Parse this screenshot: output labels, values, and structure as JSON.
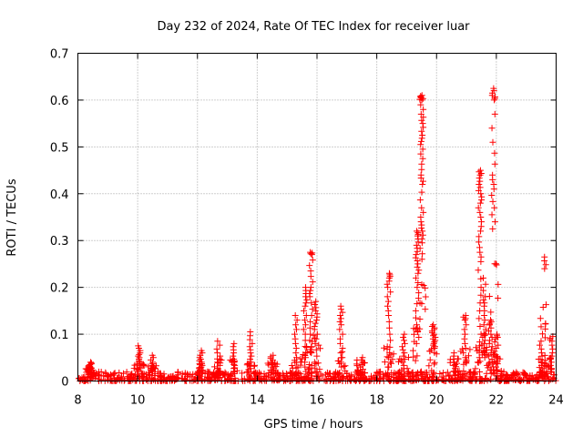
{
  "chart_data": {
    "type": "scatter",
    "title": "Day 232 of 2024, Rate Of TEC Index for receiver luar",
    "xlabel": "GPS time / hours",
    "ylabel": "ROTI / TECUs",
    "xlim": [
      8,
      24
    ],
    "ylim": [
      0,
      0.7
    ],
    "x_ticks": [
      8,
      10,
      12,
      14,
      16,
      18,
      20,
      22,
      24
    ],
    "x_tick_labels": [
      "8",
      "10",
      "12",
      "14",
      "16",
      "18",
      "20",
      "22",
      "24"
    ],
    "y_ticks": [
      0,
      0.1,
      0.2,
      0.3,
      0.4,
      0.5,
      0.6,
      0.7
    ],
    "y_tick_labels": [
      "0",
      "0.1",
      "0.2",
      "0.3",
      "0.4",
      "0.5",
      "0.6",
      "0.7"
    ],
    "grid": true,
    "marker": "+",
    "color": "#ff0000",
    "background_level": {
      "x_range": [
        8,
        24
      ],
      "y_min": 0.0,
      "y_max": 0.02
    },
    "clusters": [
      {
        "x": 8.4,
        "y": [
          0.01,
          0.02,
          0.025,
          0.03,
          0.035,
          0.04
        ]
      },
      {
        "x": 10.05,
        "y": [
          0.02,
          0.03,
          0.04,
          0.05,
          0.06,
          0.075
        ]
      },
      {
        "x": 10.5,
        "y": [
          0.02,
          0.03,
          0.04,
          0.055
        ]
      },
      {
        "x": 12.1,
        "y": [
          0.02,
          0.03,
          0.04,
          0.05,
          0.065
        ]
      },
      {
        "x": 12.7,
        "y": [
          0.02,
          0.04,
          0.06,
          0.085
        ]
      },
      {
        "x": 13.2,
        "y": [
          0.02,
          0.04,
          0.06,
          0.08
        ]
      },
      {
        "x": 13.8,
        "y": [
          0.02,
          0.04,
          0.06,
          0.08,
          0.105
        ]
      },
      {
        "x": 14.5,
        "y": [
          0.02,
          0.03,
          0.045,
          0.055
        ]
      },
      {
        "x": 15.3,
        "y": [
          0.02,
          0.05,
          0.08,
          0.11,
          0.14
        ]
      },
      {
        "x": 15.6,
        "y": [
          0.03,
          0.06,
          0.1,
          0.13,
          0.16,
          0.18,
          0.2
        ]
      },
      {
        "x": 15.8,
        "y": [
          0.06,
          0.1,
          0.14,
          0.18,
          0.2,
          0.235,
          0.27,
          0.275
        ]
      },
      {
        "x": 15.95,
        "y": [
          0.04,
          0.08,
          0.11,
          0.13,
          0.15,
          0.17
        ]
      },
      {
        "x": 16.8,
        "y": [
          0.03,
          0.06,
          0.09,
          0.12,
          0.14,
          0.16
        ]
      },
      {
        "x": 17.5,
        "y": [
          0.02,
          0.035,
          0.05
        ]
      },
      {
        "x": 18.4,
        "y": [
          0.03,
          0.06,
          0.1,
          0.14,
          0.17,
          0.2,
          0.22,
          0.23
        ]
      },
      {
        "x": 18.9,
        "y": [
          0.02,
          0.04,
          0.06,
          0.08,
          0.1
        ]
      },
      {
        "x": 19.35,
        "y": [
          0.08,
          0.12,
          0.165,
          0.2,
          0.23,
          0.25,
          0.27,
          0.29,
          0.31,
          0.32
        ]
      },
      {
        "x": 19.5,
        "y": [
          0.26,
          0.295,
          0.32,
          0.34,
          0.37,
          0.42,
          0.44,
          0.475,
          0.505,
          0.525,
          0.55,
          0.57,
          0.6,
          0.605,
          0.61
        ]
      },
      {
        "x": 19.9,
        "y": [
          0.07,
          0.08,
          0.09,
          0.1,
          0.11,
          0.12
        ]
      },
      {
        "x": 20.6,
        "y": [
          0.02,
          0.04,
          0.06
        ]
      },
      {
        "x": 20.95,
        "y": [
          0.04,
          0.07,
          0.1,
          0.13,
          0.14
        ]
      },
      {
        "x": 21.45,
        "y": [
          0.05,
          0.1,
          0.15,
          0.2,
          0.255,
          0.285,
          0.32,
          0.35,
          0.38,
          0.4,
          0.42,
          0.44,
          0.45
        ]
      },
      {
        "x": 21.6,
        "y": [
          0.05,
          0.08,
          0.1,
          0.13,
          0.16,
          0.18,
          0.22
        ]
      },
      {
        "x": 21.8,
        "y": [
          0.04,
          0.06,
          0.08,
          0.1,
          0.12,
          0.13
        ]
      },
      {
        "x": 21.9,
        "y": [
          0.325,
          0.37,
          0.41,
          0.44,
          0.51,
          0.6,
          0.61,
          0.625
        ]
      },
      {
        "x": 22.0,
        "y": [
          0.03,
          0.05,
          0.07,
          0.09,
          0.1
        ]
      },
      {
        "x": 23.5,
        "y": [
          0.02,
          0.04,
          0.06,
          0.085
        ]
      },
      {
        "x": 23.6,
        "y": [
          0.24,
          0.265
        ]
      },
      {
        "x": 23.85,
        "y": [
          0.02,
          0.04,
          0.06,
          0.085,
          0.095
        ]
      }
    ]
  }
}
